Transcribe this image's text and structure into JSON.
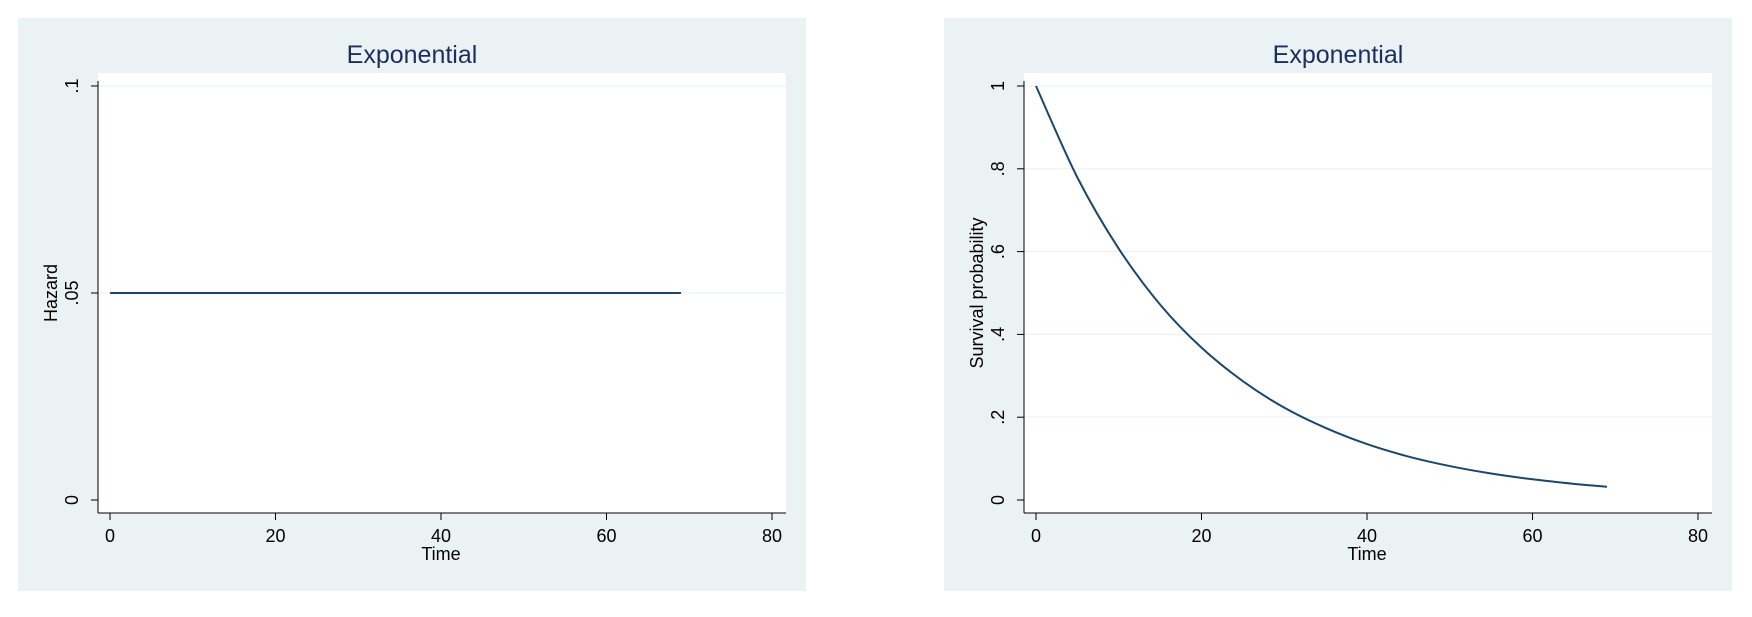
{
  "colors": {
    "outer_background": "#eaf2f3",
    "plot_background": "#ffffff",
    "line": "#1a476f",
    "gridline": "#eaf2f3",
    "axis": "#000000",
    "title": "#1a2f5e"
  },
  "chart_data": [
    {
      "type": "line",
      "title": "Exponential",
      "xlabel": "Time",
      "ylabel": "Hazard",
      "xlim": [
        0,
        80
      ],
      "ylim": [
        0,
        0.1
      ],
      "xticks": [
        0,
        20,
        40,
        60,
        80
      ],
      "xtick_labels": [
        "0",
        "20",
        "40",
        "60",
        "80"
      ],
      "yticks": [
        0,
        0.05,
        0.1
      ],
      "ytick_labels": [
        "0",
        ".05",
        ".1"
      ],
      "grid": true,
      "series": [
        {
          "x": [
            0,
            69
          ],
          "y": [
            0.05,
            0.05
          ]
        }
      ]
    },
    {
      "type": "line",
      "title": "Exponential",
      "xlabel": "Time",
      "ylabel": "Survival probability",
      "xlim": [
        0,
        80
      ],
      "ylim": [
        0,
        1
      ],
      "xticks": [
        0,
        20,
        40,
        60,
        80
      ],
      "xtick_labels": [
        "0",
        "20",
        "40",
        "60",
        "80"
      ],
      "yticks": [
        0,
        0.2,
        0.4,
        0.6,
        0.8,
        1
      ],
      "ytick_labels": [
        "0",
        ".2",
        ".4",
        ".6",
        ".8",
        "1"
      ],
      "grid": true,
      "series": [
        {
          "x": [
            0,
            5,
            10,
            15,
            20,
            25,
            30,
            35,
            40,
            45,
            50,
            55,
            60,
            65,
            69
          ],
          "y": [
            1,
            0.779,
            0.607,
            0.472,
            0.368,
            0.287,
            0.223,
            0.174,
            0.135,
            0.105,
            0.082,
            0.064,
            0.05,
            0.039,
            0.032
          ]
        }
      ]
    }
  ]
}
